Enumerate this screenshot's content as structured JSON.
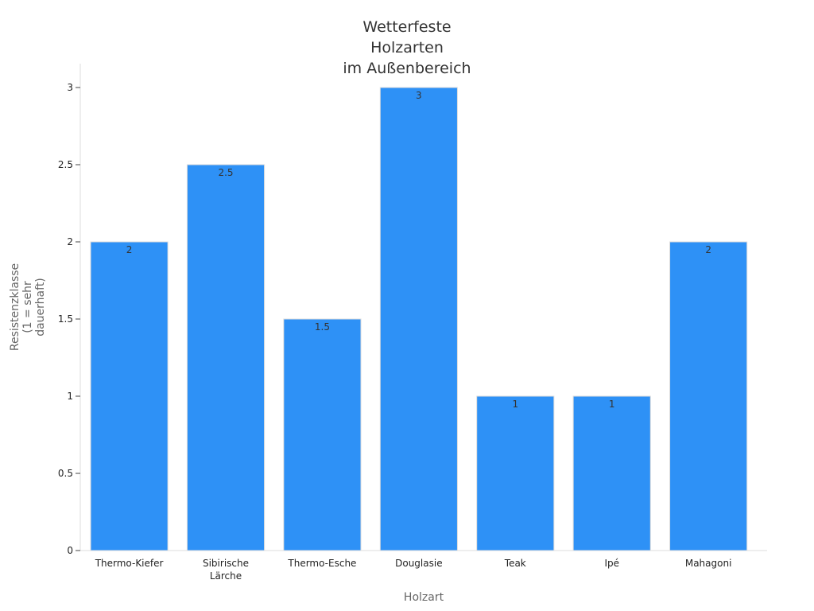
{
  "chart_data": {
    "type": "bar",
    "title_lines": [
      "Wetterfeste",
      "Holzarten",
      "im Außenbereich"
    ],
    "xlabel": "Holzart",
    "ylabel_lines": [
      "Resistenzklasse",
      "(1 = sehr",
      "dauerhaft)"
    ],
    "categories": [
      [
        "Thermo-Kiefer"
      ],
      [
        "Sibirische",
        "Lärche"
      ],
      [
        "Thermo-Esche"
      ],
      [
        "Douglasie"
      ],
      [
        "Teak"
      ],
      [
        "Ipé"
      ],
      [
        "Mahagoni"
      ]
    ],
    "values": [
      2,
      2.5,
      1.5,
      3,
      1,
      1,
      2
    ],
    "value_labels": [
      "2",
      "2.5",
      "1.5",
      "3",
      "1",
      "1",
      "2"
    ],
    "ylim": [
      0,
      3
    ],
    "yticks": [
      0,
      0.5,
      1,
      1.5,
      2,
      2.5,
      3
    ],
    "ytick_labels": [
      "0",
      "0.5",
      "1",
      "1.5",
      "2",
      "2.5",
      "3"
    ],
    "grid": false,
    "legend": "none",
    "bar_color": "#2e91f6",
    "bar_edge_color": "#dddddd"
  }
}
